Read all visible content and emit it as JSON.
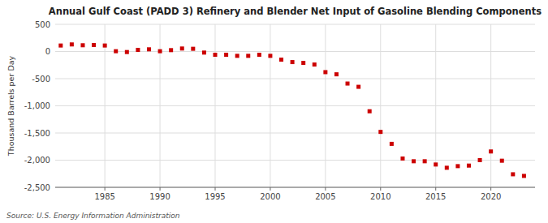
{
  "chart_data": {
    "type": "scatter",
    "title": "Annual Gulf Coast (PADD 3) Refinery and Blender Net Input of Gasoline Blending Components",
    "ylabel": "Thousand Barrels per Day",
    "source": "Source: U.S. Energy Information Administration",
    "x": [
      1981,
      1982,
      1983,
      1984,
      1985,
      1986,
      1987,
      1988,
      1989,
      1990,
      1991,
      1992,
      1993,
      1994,
      1995,
      1996,
      1997,
      1998,
      1999,
      2000,
      2001,
      2002,
      2003,
      2004,
      2005,
      2006,
      2007,
      2008,
      2009,
      2010,
      2011,
      2012,
      2013,
      2014,
      2015,
      2016,
      2017,
      2018,
      2019,
      2020,
      2021,
      2022,
      2023
    ],
    "values": [
      110,
      130,
      115,
      120,
      110,
      5,
      -10,
      30,
      40,
      5,
      25,
      55,
      50,
      -20,
      -60,
      -60,
      -80,
      -80,
      -60,
      -80,
      -150,
      -195,
      -210,
      -240,
      -380,
      -420,
      -590,
      -650,
      -1100,
      -1480,
      -1700,
      -1970,
      -2020,
      -2020,
      -2080,
      -2140,
      -2110,
      -2100,
      -2000,
      -1840,
      -2010,
      -2260,
      -2290
    ],
    "color": "#cc0000",
    "marker": "square",
    "xlim": [
      1980.5,
      2024
    ],
    "ylim": [
      -2500,
      500
    ],
    "xticks": [
      1985,
      1990,
      1995,
      2000,
      2005,
      2010,
      2015,
      2020
    ],
    "yticks": [
      500,
      0,
      {
        "value": -500,
        "label": "-500"
      },
      {
        "value": -1000,
        "label": "-1,000"
      },
      {
        "value": -1500,
        "label": "-1,500"
      },
      {
        "value": -2000,
        "label": "-2,000"
      },
      {
        "value": -2500,
        "label": "-2,500"
      }
    ],
    "grid": true
  }
}
